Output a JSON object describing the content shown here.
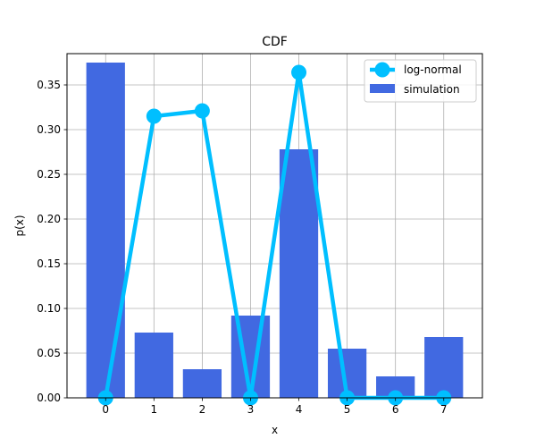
{
  "chart_data": {
    "type": "bar",
    "title": "CDF",
    "xlabel": "x",
    "ylabel": "p(x)",
    "categories": [
      "0",
      "1",
      "2",
      "3",
      "4",
      "5",
      "6",
      "7"
    ],
    "x": [
      0,
      1,
      2,
      3,
      4,
      5,
      6,
      7
    ],
    "ylim": [
      0,
      0.385
    ],
    "yticks": [
      "0.00",
      "0.05",
      "0.10",
      "0.15",
      "0.20",
      "0.25",
      "0.30",
      "0.35"
    ],
    "grid": true,
    "legend_position": "top-right",
    "series": [
      {
        "name": "log-normal",
        "type": "line",
        "color": "#00bfff",
        "values": [
          0.0,
          0.315,
          0.321,
          0.0,
          0.364,
          0.0,
          0.0,
          0.0
        ]
      },
      {
        "name": "simulation",
        "type": "bar",
        "color": "#4169e1",
        "values": [
          0.375,
          0.073,
          0.032,
          0.092,
          0.278,
          0.055,
          0.024,
          0.068
        ]
      }
    ]
  }
}
